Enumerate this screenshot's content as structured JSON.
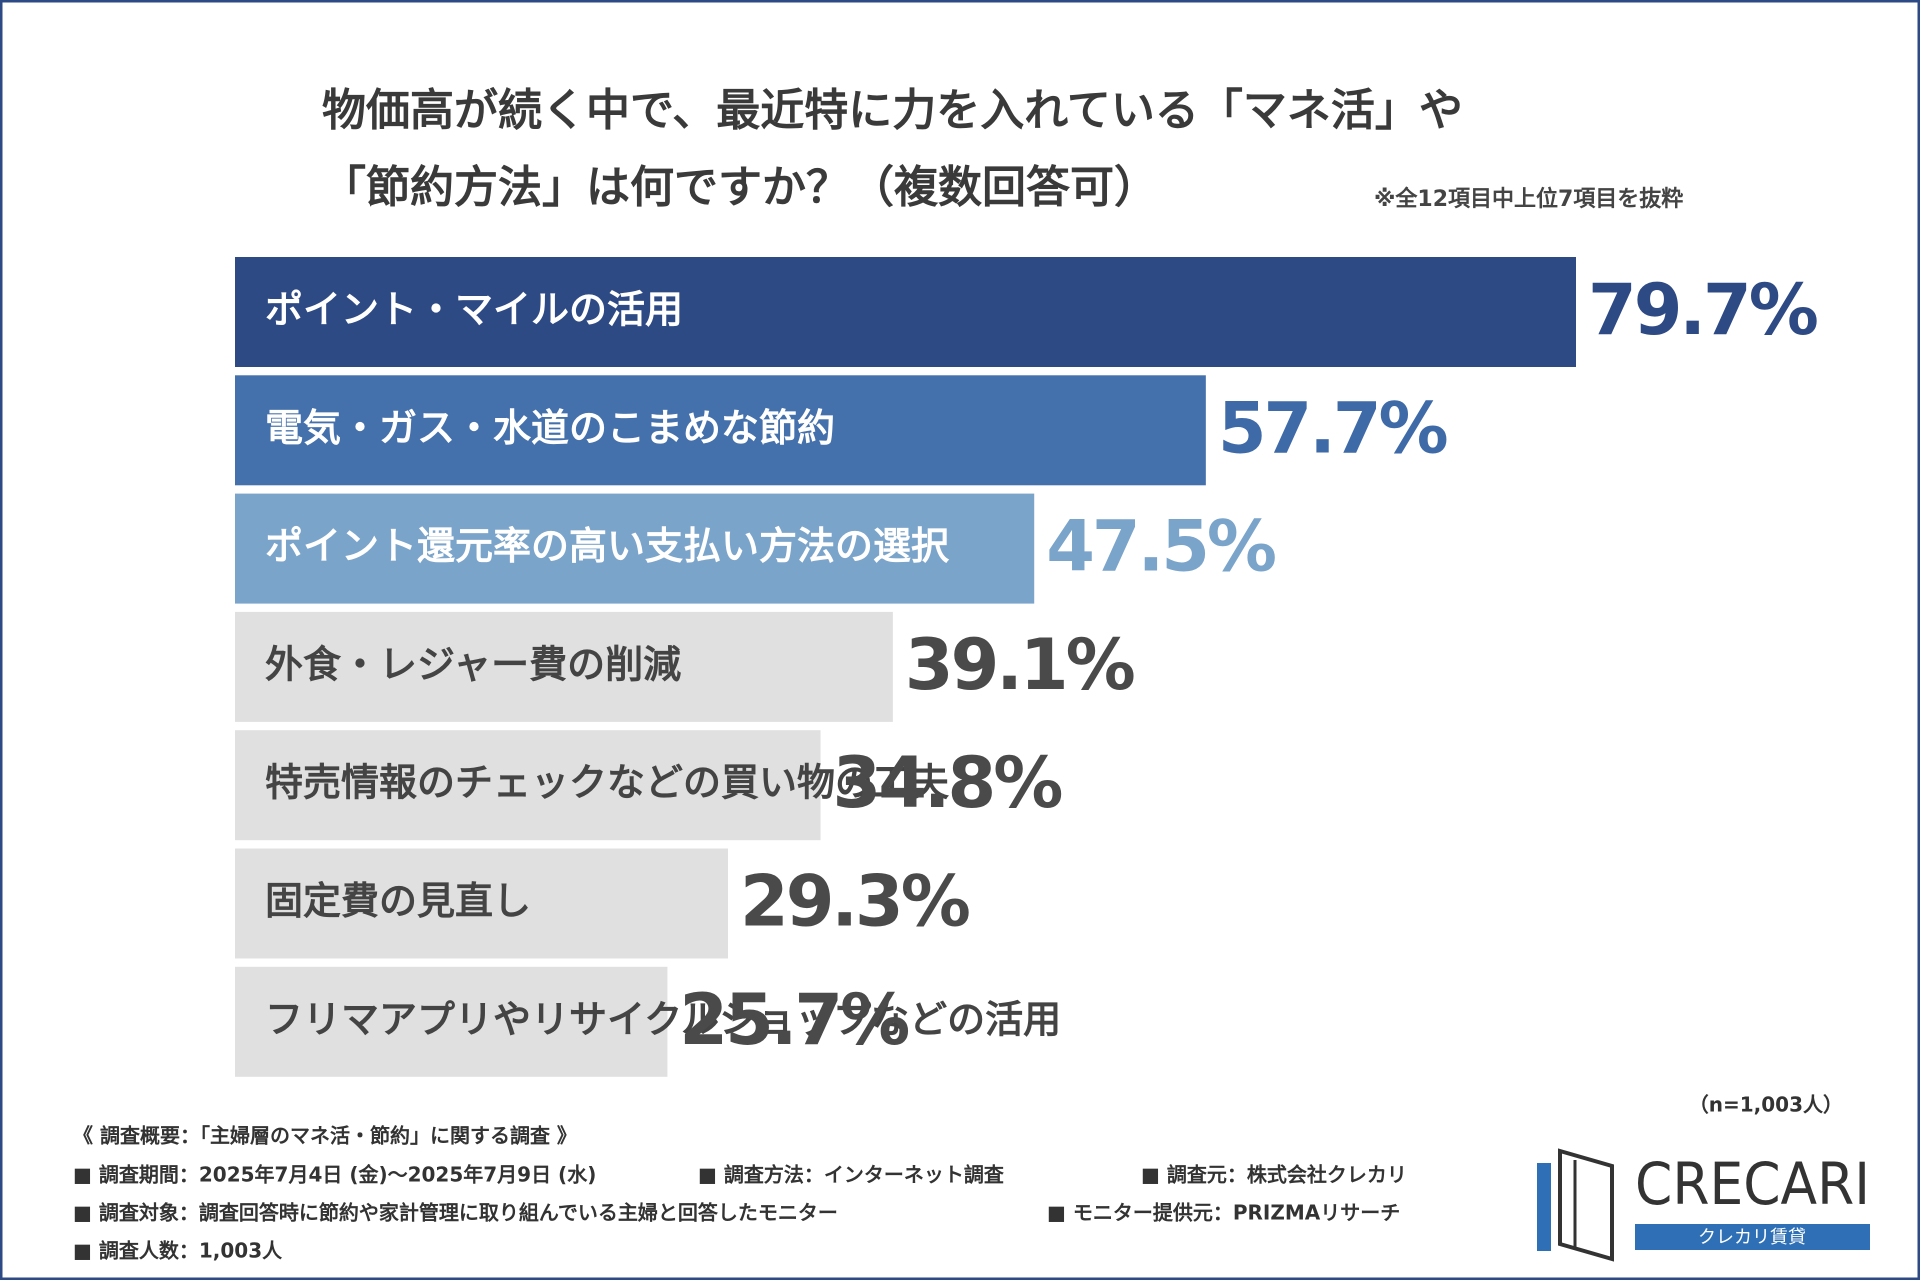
{
  "chart_data": {
    "type": "bar",
    "orientation": "horizontal",
    "title_lines": [
      "物価高が続く中で、最近特に力を入れている「マネ活」や",
      "「節約方法」は何ですか？（複数回答可）"
    ],
    "note": "※全12項目中上位7項目を抜粋",
    "categories": [
      "ポイント・マイルの活用",
      "電気・ガス・水道のこまめな節約",
      "ポイント還元率の高い支払い方法の選択",
      "外食・レジャー費の削減",
      "特売情報のチェックなどの買い物の工夫",
      "固定費の見直し",
      "フリマアプリやリサイクルショップなどの活用"
    ],
    "values": [
      79.7,
      57.7,
      47.5,
      39.1,
      34.8,
      29.3,
      25.7
    ],
    "value_labels": [
      "79.7%",
      "57.7%",
      "47.5%",
      "39.1%",
      "34.8%",
      "29.3%",
      "25.7%"
    ],
    "colors": [
      "#2e4a84",
      "#4470ab",
      "#7ba4ca",
      "#e0e0e0",
      "#e0e0e0",
      "#e0e0e0",
      "#e0e0e0"
    ],
    "label_colors": [
      "#ffffff",
      "#ffffff",
      "#ffffff",
      "#444444",
      "#444444",
      "#444444",
      "#444444"
    ],
    "value_colors": [
      "#2e4a84",
      "#3f6aa8",
      "#7ba4ca",
      "#4a4a4a",
      "#4a4a4a",
      "#4a4a4a",
      "#4a4a4a"
    ],
    "sample_size": "（n=1,003人）"
  },
  "survey": {
    "heading": "《 調査概要：「主婦層のマネ活・節約」に関する調査 》",
    "items": [
      "■ 調査期間：2025年7月4日 (金)〜2025年7月9日 (水)",
      "■ 調査方法：インターネット調査",
      "■ 調査元：株式会社クレカリ",
      "■ 調査対象：調査回答時に節約や家計管理に取り組んでいる主婦と回答したモニター",
      "■ モニター提供元：PRIZMAリサーチ",
      "■ 調査人数：1,003人"
    ]
  },
  "logo": {
    "name": "CRECARI",
    "tagline": "クレカリ賃貸"
  }
}
